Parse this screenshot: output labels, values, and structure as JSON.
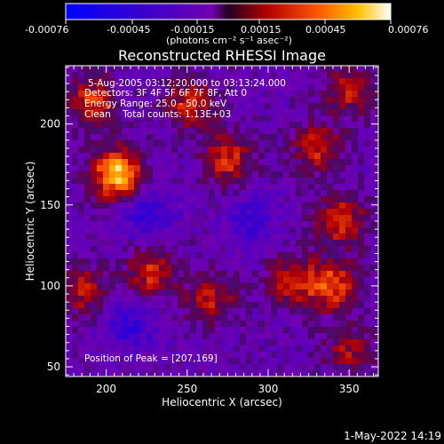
{
  "colorbar": {
    "ticks": [
      "-0.00076",
      "-0.00045",
      "-0.00015",
      "0.00015",
      "0.00045",
      "0.00076"
    ],
    "unit_label": "(photons cm⁻² s⁻¹ asec⁻²)"
  },
  "chart_data": {
    "type": "heatmap",
    "title": "Reconstructed RHESSI Image",
    "xlabel": "Heliocentric X (arcsec)",
    "ylabel": "Heliocentric Y (arcsec)",
    "xlim": [
      175,
      368
    ],
    "ylim": [
      44,
      236
    ],
    "xticks": [
      200,
      250,
      300,
      350
    ],
    "yticks": [
      50,
      100,
      150,
      200
    ],
    "zlim": [
      -0.00076,
      0.00076
    ],
    "annotations": [
      "5-Aug-2005 03:12:20.000 to 03:13:24.000",
      "Detectors: 3F 4F 5F 6F 7F 8F, Att 0",
      "Energy Range: 25.0 - 50.0 keV",
      "Clean    Total counts: 1.13E+03"
    ],
    "peak_label": "Position of Peak = [207,169]",
    "peak": [
      207,
      169
    ],
    "hotspots": [
      {
        "x": 207,
        "y": 169,
        "intensity": 0.00076
      },
      {
        "x": 192,
        "y": 214,
        "intensity": 0.00045
      },
      {
        "x": 252,
        "y": 212,
        "intensity": 0.0004
      },
      {
        "x": 275,
        "y": 178,
        "intensity": 0.00042
      },
      {
        "x": 330,
        "y": 185,
        "intensity": 0.0004
      },
      {
        "x": 350,
        "y": 220,
        "intensity": 0.00035
      },
      {
        "x": 345,
        "y": 140,
        "intensity": 0.00045
      },
      {
        "x": 340,
        "y": 100,
        "intensity": 0.0005
      },
      {
        "x": 315,
        "y": 103,
        "intensity": 0.0004
      },
      {
        "x": 228,
        "y": 108,
        "intensity": 0.0004
      },
      {
        "x": 265,
        "y": 92,
        "intensity": 0.00035
      },
      {
        "x": 185,
        "y": 97,
        "intensity": 0.00035
      },
      {
        "x": 350,
        "y": 60,
        "intensity": 0.0003
      }
    ],
    "coldspots": [
      {
        "x": 225,
        "y": 145,
        "intensity": -0.0003
      },
      {
        "x": 215,
        "y": 75,
        "intensity": -0.0003
      },
      {
        "x": 290,
        "y": 140,
        "intensity": -0.00025
      }
    ]
  },
  "footer": {
    "timestamp": "1-May-2022 14:19"
  }
}
